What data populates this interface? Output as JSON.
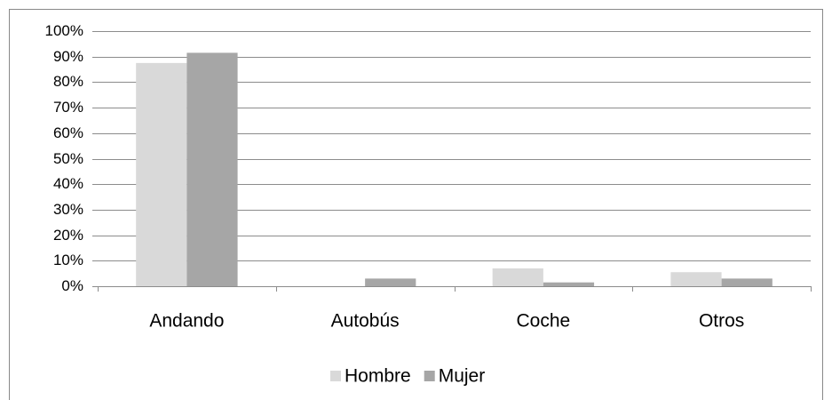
{
  "chart_data": {
    "type": "bar",
    "categories": [
      "Andando",
      "Autobús",
      "Coche",
      "Otros"
    ],
    "series": [
      {
        "name": "Hombre",
        "color": "#d9d9d9",
        "values": [
          87.5,
          0,
          7,
          5.5
        ]
      },
      {
        "name": "Mujer",
        "color": "#a6a6a6",
        "values": [
          91.5,
          3,
          1.5,
          3
        ]
      }
    ],
    "ylim": [
      0,
      100
    ],
    "yticks": [
      {
        "value": 0,
        "label": "0%"
      },
      {
        "value": 10,
        "label": "10%"
      },
      {
        "value": 20,
        "label": "20%"
      },
      {
        "value": 30,
        "label": "30%"
      },
      {
        "value": 40,
        "label": "40%"
      },
      {
        "value": 50,
        "label": "50%"
      },
      {
        "value": 60,
        "label": "60%"
      },
      {
        "value": 70,
        "label": "70%"
      },
      {
        "value": 80,
        "label": "80%"
      },
      {
        "value": 90,
        "label": "90%"
      },
      {
        "value": 100,
        "label": "100%"
      }
    ],
    "grid": true,
    "legend": "bottom"
  }
}
